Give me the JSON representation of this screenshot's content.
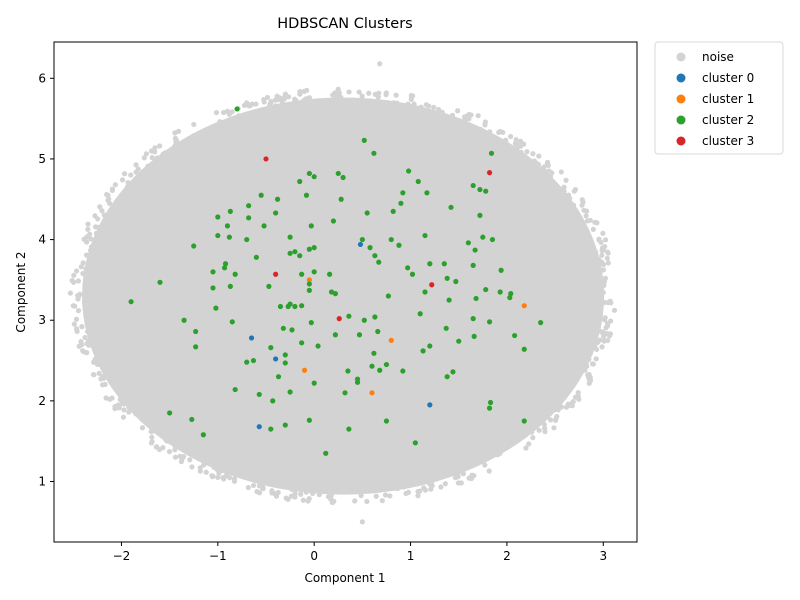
{
  "chart_data": {
    "type": "scatter",
    "title": "HDBSCAN Clusters",
    "xlabel": "Component 1",
    "ylabel": "Component 2",
    "xlim": [
      -2.7,
      3.35
    ],
    "ylim": [
      0.25,
      6.45
    ],
    "xticks": [
      -2,
      -1,
      0,
      1,
      2,
      3
    ],
    "yticks": [
      1,
      2,
      3,
      4,
      5,
      6
    ],
    "grid": false,
    "legend_position": "outside-top-right",
    "noise_region": {
      "description_center": [
        0.3,
        3.3
      ],
      "radius_x": 2.75,
      "radius_y": 2.5,
      "outliers": [
        [
          -2.5,
          3.18
        ],
        [
          -2.3,
          3.0
        ],
        [
          3.05,
          3.22
        ],
        [
          0.68,
          6.18
        ],
        [
          0.5,
          0.5
        ],
        [
          -0.45,
          5.7
        ],
        [
          2.95,
          3.6
        ],
        [
          -2.2,
          2.3
        ],
        [
          2.7,
          4.6
        ],
        [
          -1.8,
          4.7
        ]
      ]
    },
    "series": [
      {
        "name": "noise",
        "color": "#d3d3d3",
        "points": []
      },
      {
        "name": "cluster 0",
        "color": "#1f77b4",
        "points": [
          [
            0.48,
            3.94
          ],
          [
            -0.65,
            2.78
          ],
          [
            -0.4,
            2.52
          ],
          [
            -0.57,
            1.68
          ],
          [
            1.2,
            1.95
          ]
        ]
      },
      {
        "name": "cluster 1",
        "color": "#ff7f0e",
        "points": [
          [
            -0.05,
            3.5
          ],
          [
            0.8,
            2.75
          ],
          [
            -0.1,
            2.38
          ],
          [
            0.6,
            2.1
          ],
          [
            2.18,
            3.18
          ]
        ]
      },
      {
        "name": "cluster 2",
        "color": "#2ca02c",
        "points": [
          [
            -0.8,
            5.62
          ],
          [
            0.52,
            5.23
          ],
          [
            0.62,
            5.07
          ],
          [
            -0.15,
            4.72
          ],
          [
            -0.05,
            4.82
          ],
          [
            0.0,
            4.78
          ],
          [
            0.25,
            4.82
          ],
          [
            0.3,
            4.77
          ],
          [
            0.98,
            4.85
          ],
          [
            1.08,
            4.72
          ],
          [
            0.92,
            4.58
          ],
          [
            1.17,
            4.58
          ],
          [
            -0.55,
            4.55
          ],
          [
            -0.38,
            4.5
          ],
          [
            -0.08,
            4.55
          ],
          [
            0.28,
            4.5
          ],
          [
            -0.68,
            4.42
          ],
          [
            -0.87,
            4.35
          ],
          [
            -0.4,
            4.33
          ],
          [
            0.55,
            4.33
          ],
          [
            0.82,
            4.35
          ],
          [
            0.9,
            4.45
          ],
          [
            1.42,
            4.4
          ],
          [
            1.65,
            4.67
          ],
          [
            1.72,
            4.62
          ],
          [
            1.78,
            4.6
          ],
          [
            1.84,
            5.07
          ],
          [
            -1.0,
            4.28
          ],
          [
            -0.68,
            4.27
          ],
          [
            -0.52,
            4.17
          ],
          [
            -0.03,
            4.17
          ],
          [
            0.2,
            4.23
          ],
          [
            1.72,
            4.3
          ],
          [
            -0.9,
            4.17
          ],
          [
            -1.0,
            4.05
          ],
          [
            -0.88,
            4.03
          ],
          [
            -0.7,
            4.0
          ],
          [
            -0.25,
            4.03
          ],
          [
            0.5,
            4.0
          ],
          [
            0.63,
            3.8
          ],
          [
            0.8,
            4.0
          ],
          [
            0.88,
            3.93
          ],
          [
            1.15,
            4.05
          ],
          [
            1.6,
            3.96
          ],
          [
            1.75,
            4.03
          ],
          [
            1.85,
            4.0
          ],
          [
            -1.25,
            3.92
          ],
          [
            -0.6,
            3.78
          ],
          [
            -0.25,
            3.83
          ],
          [
            -0.2,
            3.85
          ],
          [
            -0.15,
            3.8
          ],
          [
            -0.05,
            3.88
          ],
          [
            0.0,
            3.9
          ],
          [
            0.58,
            3.9
          ],
          [
            0.67,
            3.72
          ],
          [
            1.2,
            3.7
          ],
          [
            1.35,
            3.7
          ],
          [
            1.65,
            3.68
          ],
          [
            1.67,
            3.87
          ],
          [
            -1.05,
            3.6
          ],
          [
            -0.93,
            3.65
          ],
          [
            -0.92,
            3.7
          ],
          [
            -0.82,
            3.57
          ],
          [
            -0.13,
            3.57
          ],
          [
            0.0,
            3.6
          ],
          [
            0.16,
            3.57
          ],
          [
            0.97,
            3.65
          ],
          [
            1.02,
            3.57
          ],
          [
            1.38,
            3.52
          ],
          [
            1.47,
            3.48
          ],
          [
            1.94,
            3.62
          ],
          [
            -1.6,
            3.47
          ],
          [
            -1.05,
            3.4
          ],
          [
            -0.87,
            3.42
          ],
          [
            -0.47,
            3.42
          ],
          [
            -0.05,
            3.45
          ],
          [
            0.18,
            3.35
          ],
          [
            0.22,
            3.33
          ],
          [
            0.77,
            3.3
          ],
          [
            1.15,
            3.35
          ],
          [
            1.4,
            3.25
          ],
          [
            1.68,
            3.27
          ],
          [
            1.78,
            3.38
          ],
          [
            1.93,
            3.35
          ],
          [
            2.03,
            3.28
          ],
          [
            2.04,
            3.33
          ],
          [
            -1.9,
            3.23
          ],
          [
            -1.02,
            3.15
          ],
          [
            -0.35,
            3.17
          ],
          [
            -0.27,
            3.17
          ],
          [
            -0.25,
            3.2
          ],
          [
            -0.2,
            3.17
          ],
          [
            -0.13,
            3.18
          ],
          [
            -0.05,
            3.37
          ],
          [
            0.36,
            3.05
          ],
          [
            0.52,
            3.0
          ],
          [
            0.63,
            3.04
          ],
          [
            1.1,
            3.08
          ],
          [
            1.65,
            3.02
          ],
          [
            1.82,
            2.98
          ],
          [
            2.35,
            2.97
          ],
          [
            -1.35,
            3.0
          ],
          [
            -0.85,
            2.98
          ],
          [
            -0.32,
            2.9
          ],
          [
            -0.23,
            2.88
          ],
          [
            -0.03,
            2.97
          ],
          [
            0.22,
            2.82
          ],
          [
            0.66,
            2.86
          ],
          [
            1.37,
            2.9
          ],
          [
            1.66,
            2.8
          ],
          [
            2.08,
            2.81
          ],
          [
            -1.23,
            2.86
          ],
          [
            -1.23,
            2.67
          ],
          [
            -0.45,
            2.66
          ],
          [
            -0.13,
            2.72
          ],
          [
            0.04,
            2.68
          ],
          [
            0.47,
            2.82
          ],
          [
            1.2,
            2.68
          ],
          [
            1.13,
            2.62
          ],
          [
            1.5,
            2.74
          ],
          [
            2.18,
            2.64
          ],
          [
            -0.3,
            2.57
          ],
          [
            -0.63,
            2.5
          ],
          [
            -0.7,
            2.48
          ],
          [
            -0.3,
            2.47
          ],
          [
            0.62,
            2.59
          ],
          [
            0.6,
            2.43
          ],
          [
            0.68,
            2.38
          ],
          [
            0.75,
            2.45
          ],
          [
            0.92,
            2.37
          ],
          [
            0.35,
            2.37
          ],
          [
            -0.37,
            2.3
          ],
          [
            0.0,
            2.22
          ],
          [
            0.45,
            2.27
          ],
          [
            0.45,
            2.23
          ],
          [
            1.38,
            2.3
          ],
          [
            1.44,
            2.36
          ],
          [
            -0.82,
            2.14
          ],
          [
            -0.25,
            2.11
          ],
          [
            0.32,
            2.1
          ],
          [
            -0.57,
            2.08
          ],
          [
            -0.43,
            2.0
          ],
          [
            1.83,
            1.98
          ],
          [
            1.82,
            1.91
          ],
          [
            -1.5,
            1.85
          ],
          [
            -1.27,
            1.77
          ],
          [
            -0.05,
            1.76
          ],
          [
            0.75,
            1.75
          ],
          [
            2.18,
            1.75
          ],
          [
            -0.3,
            1.7
          ],
          [
            -0.45,
            1.65
          ],
          [
            0.36,
            1.65
          ],
          [
            -1.15,
            1.58
          ],
          [
            1.05,
            1.48
          ],
          [
            0.12,
            1.35
          ]
        ]
      },
      {
        "name": "cluster 3",
        "color": "#d62728",
        "points": [
          [
            -0.5,
            5.0
          ],
          [
            1.82,
            4.83
          ],
          [
            -0.4,
            3.57
          ],
          [
            1.22,
            3.44
          ],
          [
            0.26,
            3.02
          ]
        ]
      }
    ]
  }
}
